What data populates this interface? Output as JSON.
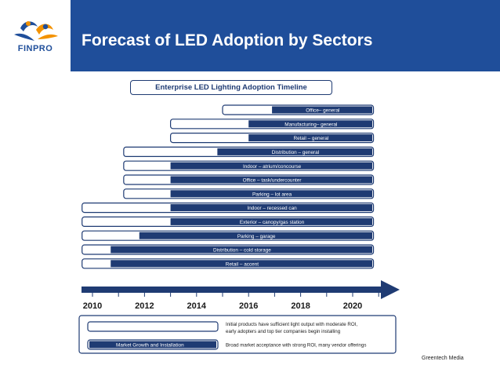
{
  "header": {
    "title": "Forecast of LED Adoption by Sectors",
    "logo_text": "FINPRO",
    "colors": {
      "bar": "#1f4e9a",
      "logo_orange": "#f39200"
    }
  },
  "source": "Greentech Media",
  "chart_data": {
    "type": "bar",
    "orientation": "horizontal-timeline",
    "title": "Enterprise LED Lighting Adoption Timeline",
    "x_ticks": [
      2010,
      2012,
      2014,
      2016,
      2018,
      2020
    ],
    "x_range": [
      2009.5,
      2021.8
    ],
    "colors": {
      "filled": "#1f3b73",
      "outline": "#1f3b73"
    },
    "series": [
      {
        "name": "Initial products have sufficient light output with moderate ROI, early adopters and top tier companies begin installing",
        "style": "outline"
      },
      {
        "name": "Broad market acceptance with strong ROI, many vendor offerings",
        "style": "filled"
      }
    ],
    "rows": [
      {
        "label": "Office– general",
        "outline_start": 2015.0,
        "filled_start": 2016.9,
        "end": 2020.8
      },
      {
        "label": "Manufacturing– general",
        "outline_start": 2013.0,
        "filled_start": 2016.0,
        "end": 2020.8
      },
      {
        "label": "Retail – general",
        "outline_start": 2013.0,
        "filled_start": 2016.0,
        "end": 2020.8
      },
      {
        "label": "Distribution – general",
        "outline_start": 2011.2,
        "filled_start": 2014.8,
        "end": 2020.8
      },
      {
        "label": "Indoor – atrium/concourse",
        "outline_start": 2011.2,
        "filled_start": 2013.0,
        "end": 2020.8
      },
      {
        "label": "Office – task/undercounter",
        "outline_start": 2011.2,
        "filled_start": 2013.0,
        "end": 2020.8
      },
      {
        "label": "Parking – lot area",
        "outline_start": 2011.2,
        "filled_start": 2013.0,
        "end": 2020.8
      },
      {
        "label": "Indoor – recessed can",
        "outline_start": 2009.6,
        "filled_start": 2013.0,
        "end": 2020.8
      },
      {
        "label": "Exterior – canopy/gas station",
        "outline_start": 2009.6,
        "filled_start": 2013.0,
        "end": 2020.8
      },
      {
        "label": "Parking – garage",
        "outline_start": 2009.6,
        "filled_start": 2011.8,
        "end": 2020.8
      },
      {
        "label": "Distribution – cold storage",
        "outline_start": 2009.6,
        "filled_start": 2010.7,
        "end": 2020.8
      },
      {
        "label": "Retail – accent",
        "outline_start": 2009.6,
        "filled_start": 2010.7,
        "end": 2020.8
      }
    ],
    "legend": {
      "outline_label": "",
      "filled_label": "Market Growth and Installation",
      "outline_text": [
        "Initial products have sufficient light output with moderate ROI,",
        "early adopters and top tier companies begin installing"
      ],
      "filled_text": [
        "Broad market acceptance with strong ROI, many vendor offerings"
      ]
    }
  }
}
